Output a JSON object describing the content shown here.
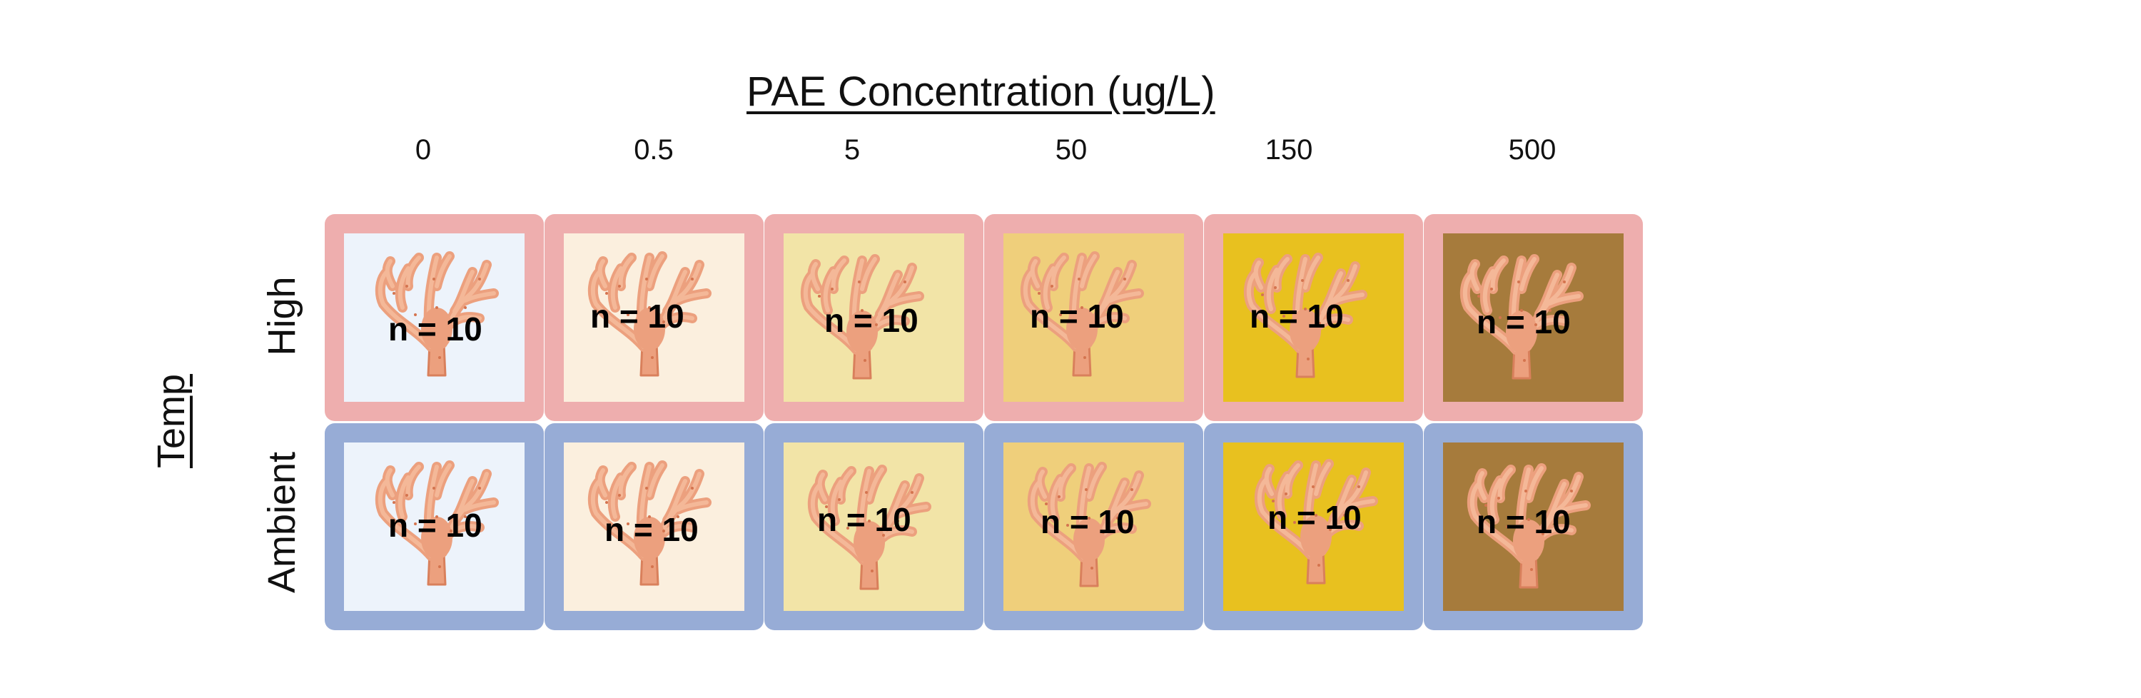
{
  "title": "PAE Concentration (ug/L)",
  "y_axis_title": "Temp",
  "columns": [
    "0",
    "0.5",
    "5",
    "50",
    "150",
    "500"
  ],
  "column_colors": [
    "#edf3fb",
    "#fbefde",
    "#f2e4a7",
    "#efcf7b",
    "#e8c11f",
    "#a67b3c"
  ],
  "rows": [
    {
      "label": "High",
      "border_color": "#eeaeae"
    },
    {
      "label": "Ambient",
      "border_color": "#97acd6"
    }
  ],
  "sample_size_label": "n = 10",
  "icon": "coral-icon"
}
